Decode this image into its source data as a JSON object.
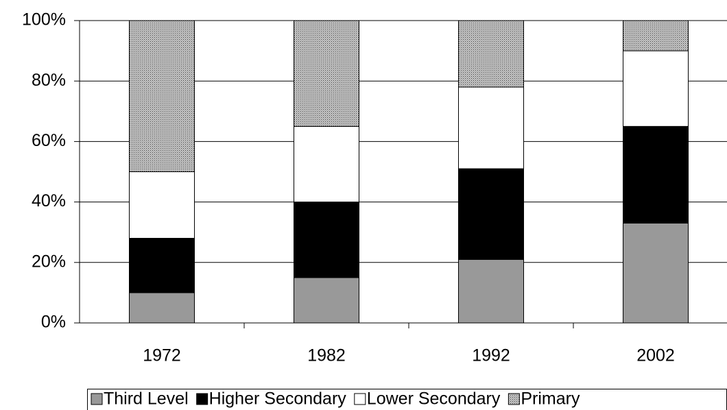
{
  "chart_data": {
    "type": "stacked_bar",
    "categories": [
      "1972",
      "1982",
      "1992",
      "2002"
    ],
    "series": [
      {
        "name": "Third Level",
        "color": "#999999",
        "values": [
          10,
          15,
          21,
          33
        ]
      },
      {
        "name": "Higher Secondary",
        "color": "#000000",
        "values": [
          18,
          25,
          30,
          32
        ]
      },
      {
        "name": "Lower Secondary",
        "color": "#ffffff",
        "values": [
          22,
          25,
          27,
          25
        ]
      },
      {
        "name": "Primary",
        "color": "#c8c8c8",
        "pattern": "dots",
        "values": [
          50,
          35,
          22,
          10
        ]
      }
    ],
    "ylim": [
      0,
      100
    ],
    "yticks": [
      {
        "value": 0,
        "label": "0%"
      },
      {
        "value": 20,
        "label": "20%"
      },
      {
        "value": 40,
        "label": "40%"
      },
      {
        "value": 60,
        "label": "60%"
      },
      {
        "value": 80,
        "label": "80%"
      },
      {
        "value": 100,
        "label": "100%"
      }
    ],
    "grid": true,
    "legend": "bottom"
  }
}
